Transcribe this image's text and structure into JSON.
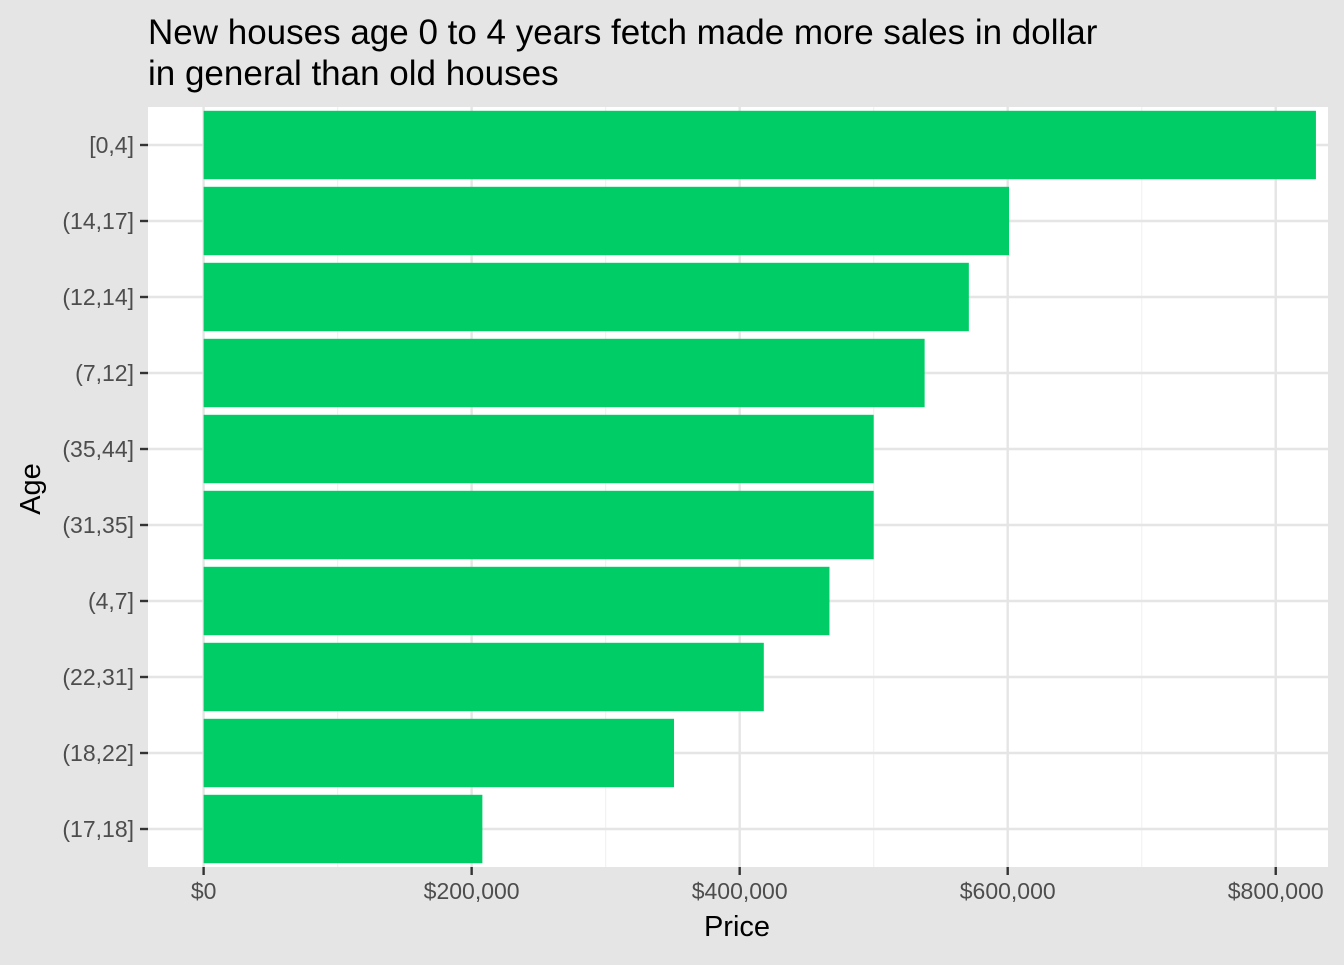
{
  "chart_data": {
    "type": "bar",
    "orientation": "horizontal",
    "title": "New houses age 0 to 4 years fetch made more sales in dollar in general than old houses",
    "title_lines": [
      "New houses age 0 to 4 years fetch made more sales in dollar",
      "in general than old houses"
    ],
    "xlabel": "Price",
    "ylabel": "Age",
    "categories": [
      "[0,4]",
      "(14,17]",
      "(12,14]",
      "(7,12]",
      "(35,44]",
      "(31,35]",
      "(4,7]",
      "(22,31]",
      "(18,22]",
      "(17,18]"
    ],
    "values": [
      830000,
      601000,
      571000,
      538000,
      500000,
      500000,
      467000,
      418000,
      351000,
      208000
    ],
    "xlim": [
      -41500,
      839000
    ],
    "x_ticks": [
      0,
      200000,
      400000,
      600000,
      800000
    ],
    "x_tick_labels": [
      "$0",
      "$200,000",
      "$400,000",
      "$600,000",
      "$800,000"
    ],
    "grid": true,
    "colors": {
      "bar": "#00cd66",
      "panel": "#ffffff",
      "background": "#e5e5e5",
      "grid_major": "#e5e5e5",
      "grid_minor": "#f2f2f2",
      "tick_label": "#4d4d4d",
      "text": "#000000"
    }
  }
}
